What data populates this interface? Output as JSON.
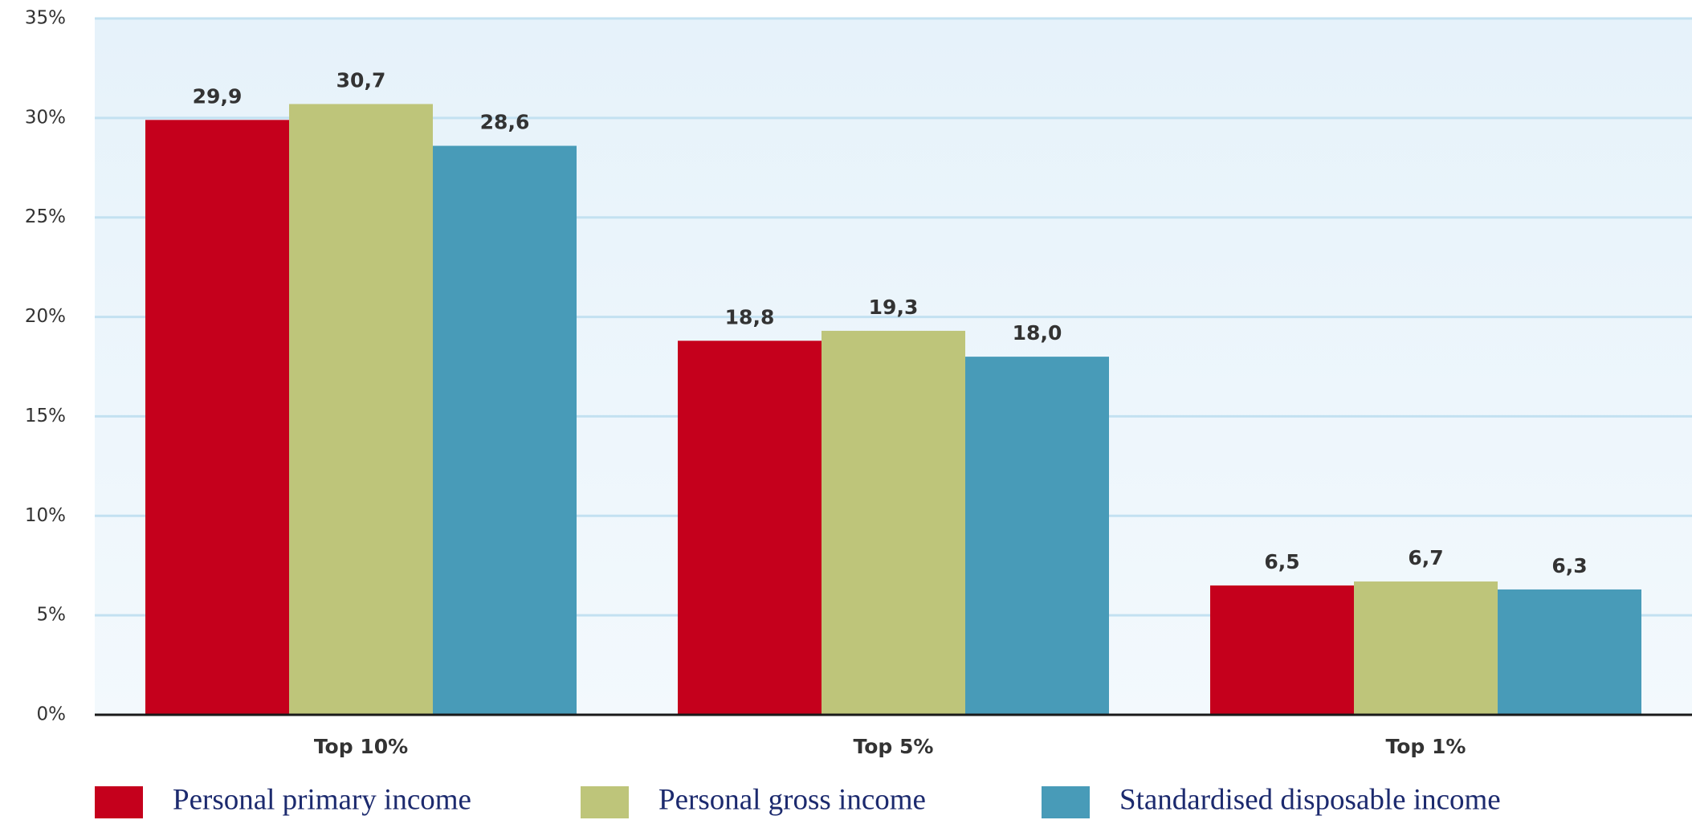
{
  "chart_data": {
    "type": "bar",
    "categories": [
      "Top 10%",
      "Top 5%",
      "Top 1%"
    ],
    "series": [
      {
        "name": "Personal primary income",
        "color": "#c5001c",
        "values": [
          29.9,
          18.8,
          6.5
        ],
        "value_labels": [
          "29,9",
          "18,8",
          "6,5"
        ]
      },
      {
        "name": "Personal gross income",
        "color": "#bec57a",
        "values": [
          30.7,
          19.3,
          6.7
        ],
        "value_labels": [
          "30,7",
          "19,3",
          "6,7"
        ]
      },
      {
        "name": "Standardised disposable income",
        "color": "#489bb8",
        "values": [
          28.6,
          18.0,
          6.3
        ],
        "value_labels": [
          "28,6",
          "18,0",
          "6,3"
        ]
      }
    ],
    "ylim": [
      0,
      35
    ],
    "yticks": [
      {
        "value": 0,
        "label": "0%"
      },
      {
        "value": 5,
        "label": "5%"
      },
      {
        "value": 10,
        "label": "10%"
      },
      {
        "value": 15,
        "label": "15%"
      },
      {
        "value": 20,
        "label": "20%"
      },
      {
        "value": 25,
        "label": "25%"
      },
      {
        "value": 30,
        "label": "30%"
      },
      {
        "value": 35,
        "label": "35%"
      }
    ],
    "grid": true,
    "legend": "bottom"
  }
}
